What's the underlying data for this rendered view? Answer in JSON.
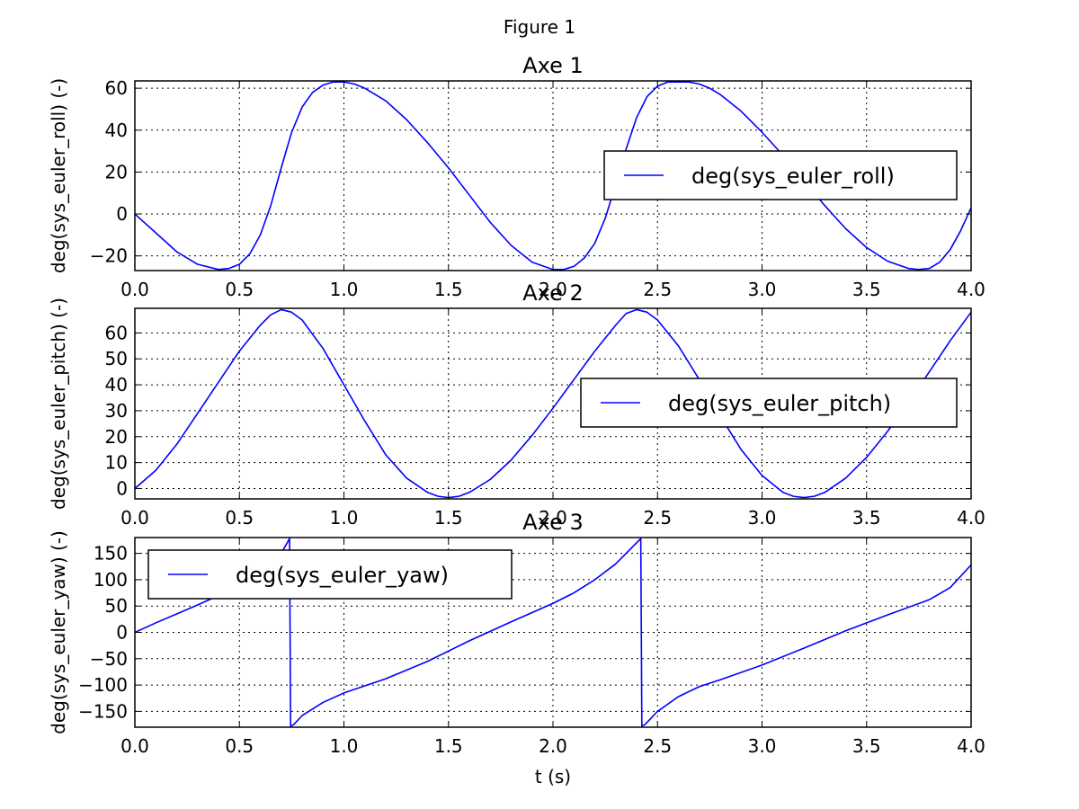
{
  "window": {
    "title": "Figure 1"
  },
  "chart_data": [
    {
      "type": "line",
      "title": "Axe 1",
      "xlabel": "",
      "ylabel": "deg(sys_euler_roll) (-)",
      "xlim": [
        0,
        4
      ],
      "ylim": [
        -27,
        63.5
      ],
      "xticks": [
        0,
        0.5,
        1,
        1.5,
        2,
        2.5,
        3,
        3.5,
        4
      ],
      "xtick_labels": [
        "0.0",
        "0.5",
        "1.0",
        "1.5",
        "2.0",
        "2.5",
        "3.0",
        "3.5",
        "4.0"
      ],
      "yticks": [
        -20,
        0,
        20,
        40,
        60
      ],
      "ytick_labels": [
        "−20",
        "0",
        "20",
        "40",
        "60"
      ],
      "grid": true,
      "legend": "center-right",
      "series": [
        {
          "name": "deg(sys_euler_roll)",
          "color": "#0000ff",
          "x": [
            0,
            0.1,
            0.2,
            0.3,
            0.4,
            0.45,
            0.5,
            0.55,
            0.6,
            0.65,
            0.7,
            0.75,
            0.8,
            0.85,
            0.9,
            0.95,
            1.0,
            1.05,
            1.1,
            1.2,
            1.3,
            1.4,
            1.5,
            1.6,
            1.7,
            1.8,
            1.9,
            2.0,
            2.05,
            2.1,
            2.15,
            2.2,
            2.25,
            2.3,
            2.35,
            2.4,
            2.45,
            2.5,
            2.55,
            2.6,
            2.65,
            2.7,
            2.75,
            2.8,
            2.9,
            3.0,
            3.1,
            3.2,
            3.3,
            3.4,
            3.5,
            3.6,
            3.7,
            3.75,
            3.8,
            3.85,
            3.9,
            3.95,
            4.0
          ],
          "y": [
            0,
            -9,
            -18,
            -24,
            -26.5,
            -26,
            -24,
            -19,
            -10,
            4,
            22,
            39,
            51,
            58,
            61.5,
            63,
            63,
            62,
            60,
            54,
            45,
            34,
            22,
            9,
            -4,
            -15,
            -23,
            -26.5,
            -26.5,
            -25,
            -21,
            -14,
            -2,
            14,
            31,
            46,
            56,
            61,
            63,
            63,
            63,
            62,
            60,
            57,
            49,
            39,
            28,
            16,
            4,
            -7,
            -16,
            -22.5,
            -26,
            -26.5,
            -26,
            -23,
            -17,
            -8,
            3
          ]
        }
      ]
    },
    {
      "type": "line",
      "title": "Axe 2",
      "xlabel": "",
      "ylabel": "deg(sys_euler_pitch) (-)",
      "xlim": [
        0,
        4
      ],
      "ylim": [
        -4,
        69.5
      ],
      "xticks": [
        0,
        0.5,
        1,
        1.5,
        2,
        2.5,
        3,
        3.5,
        4
      ],
      "xtick_labels": [
        "0.0",
        "0.5",
        "1.0",
        "1.5",
        "2.0",
        "2.5",
        "3.0",
        "3.5",
        "4.0"
      ],
      "yticks": [
        0,
        10,
        20,
        30,
        40,
        50,
        60
      ],
      "ytick_labels": [
        "0",
        "10",
        "20",
        "30",
        "40",
        "50",
        "60"
      ],
      "grid": true,
      "legend": "center-right",
      "series": [
        {
          "name": "deg(sys_euler_pitch)",
          "color": "#0000ff",
          "x": [
            0,
            0.1,
            0.2,
            0.3,
            0.4,
            0.5,
            0.6,
            0.65,
            0.7,
            0.75,
            0.8,
            0.9,
            1.0,
            1.1,
            1.2,
            1.3,
            1.4,
            1.45,
            1.5,
            1.55,
            1.6,
            1.7,
            1.8,
            1.9,
            2.0,
            2.1,
            2.2,
            2.3,
            2.35,
            2.4,
            2.45,
            2.5,
            2.6,
            2.7,
            2.8,
            2.9,
            3.0,
            3.1,
            3.15,
            3.2,
            3.25,
            3.3,
            3.4,
            3.5,
            3.6,
            3.7,
            3.8,
            3.9,
            4.0
          ],
          "y": [
            0,
            7,
            17,
            29,
            41,
            53,
            63,
            67,
            69,
            68,
            65,
            54,
            40,
            26,
            13,
            4,
            -1.5,
            -3,
            -3.5,
            -3,
            -1.5,
            3.5,
            11,
            20.5,
            31,
            42,
            53,
            63,
            67.5,
            69,
            68,
            65,
            55,
            42,
            28,
            15,
            5,
            -1.5,
            -3,
            -3.5,
            -3,
            -1.5,
            4,
            12,
            22,
            33,
            45,
            57,
            68
          ]
        }
      ]
    },
    {
      "type": "line",
      "title": "Axe 3",
      "xlabel": "t (s)",
      "ylabel": "deg(sys_euler_yaw) (-)",
      "xlim": [
        0,
        4
      ],
      "ylim": [
        -180,
        180
      ],
      "xticks": [
        0,
        0.5,
        1,
        1.5,
        2,
        2.5,
        3,
        3.5,
        4
      ],
      "xtick_labels": [
        "0.0",
        "0.5",
        "1.0",
        "1.5",
        "2.0",
        "2.5",
        "3.0",
        "3.5",
        "4.0"
      ],
      "yticks": [
        -150,
        -100,
        -50,
        0,
        50,
        100,
        150
      ],
      "ytick_labels": [
        "−150",
        "−100",
        "−50",
        "0",
        "50",
        "100",
        "150"
      ],
      "grid": true,
      "legend": "top-left",
      "series": [
        {
          "name": "deg(sys_euler_yaw)",
          "color": "#0000ff",
          "x": [
            0,
            0.1,
            0.2,
            0.3,
            0.4,
            0.5,
            0.6,
            0.65,
            0.7,
            0.74,
            0.745,
            0.76,
            0.8,
            0.9,
            1.0,
            1.2,
            1.4,
            1.6,
            1.8,
            2.0,
            2.1,
            2.2,
            2.3,
            2.35,
            2.4,
            2.42,
            2.425,
            2.44,
            2.5,
            2.6,
            2.7,
            2.8,
            3.0,
            3.2,
            3.4,
            3.6,
            3.8,
            3.9,
            4.0
          ],
          "y": [
            0,
            18,
            35,
            52,
            70,
            88,
            110,
            128,
            150,
            178,
            -178,
            -175,
            -158,
            -133,
            -115,
            -88,
            -55,
            -16,
            20,
            55,
            75,
            100,
            130,
            150,
            170,
            178,
            -178,
            -175,
            -150,
            -122,
            -103,
            -90,
            -62,
            -30,
            3,
            33,
            62,
            85,
            128
          ]
        }
      ]
    }
  ]
}
